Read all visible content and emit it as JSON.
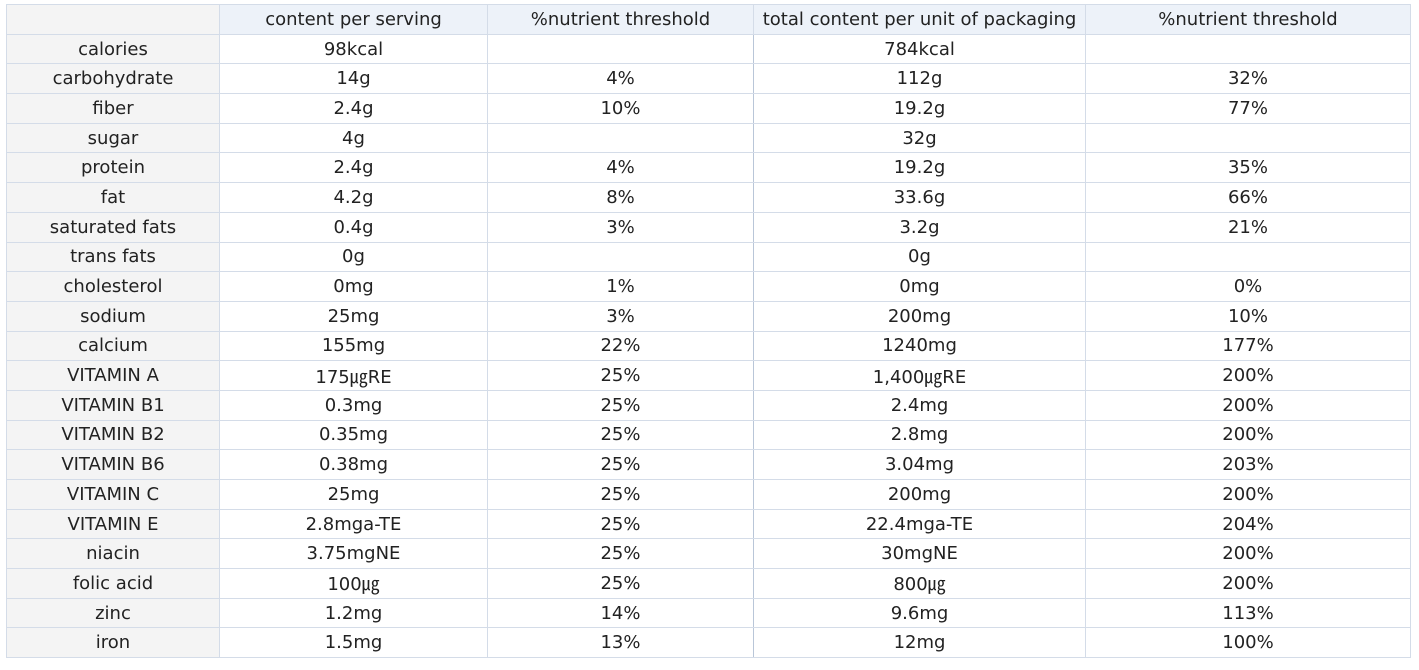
{
  "table": {
    "headers": [
      "",
      "content per serving",
      "%nutrient threshold",
      "total content per unit of packaging",
      "%nutrient threshold"
    ],
    "rows": [
      [
        "calories",
        "98kcal",
        "",
        "784kcal",
        ""
      ],
      [
        "carbohydrate",
        "14g",
        "4%",
        "112g",
        "32%"
      ],
      [
        "fiber",
        "2.4g",
        "10%",
        "19.2g",
        "77%"
      ],
      [
        "sugar",
        "4g",
        "",
        "32g",
        ""
      ],
      [
        "protein",
        "2.4g",
        "4%",
        "19.2g",
        "35%"
      ],
      [
        "fat",
        "4.2g",
        "8%",
        "33.6g",
        "66%"
      ],
      [
        "saturated fats",
        "0.4g",
        "3%",
        "3.2g",
        "21%"
      ],
      [
        "trans fats",
        "0g",
        "",
        "0g",
        ""
      ],
      [
        "cholesterol",
        "0mg",
        "1%",
        "0mg",
        "0%"
      ],
      [
        "sodium",
        "25mg",
        "3%",
        "200mg",
        "10%"
      ],
      [
        "calcium",
        "155mg",
        "22%",
        "1240mg",
        "177%"
      ],
      [
        "VITAMIN A",
        "175㎍RE",
        "25%",
        "1,400㎍RE",
        "200%"
      ],
      [
        "VITAMIN B1",
        "0.3mg",
        "25%",
        "2.4mg",
        "200%"
      ],
      [
        "VITAMIN B2",
        "0.35mg",
        "25%",
        "2.8mg",
        "200%"
      ],
      [
        "VITAMIN B6",
        "0.38mg",
        "25%",
        "3.04mg",
        "203%"
      ],
      [
        "VITAMIN C",
        "25mg",
        "25%",
        "200mg",
        "200%"
      ],
      [
        "VITAMIN E",
        "2.8mga-TE",
        "25%",
        "22.4mga-TE",
        "204%"
      ],
      [
        "niacin",
        "3.75mgNE",
        "25%",
        "30mgNE",
        "200%"
      ],
      [
        "folic acid",
        "100㎍",
        "25%",
        "800㎍",
        "200%"
      ],
      [
        "zinc",
        "1.2mg",
        "14%",
        "9.6mg",
        "113%"
      ],
      [
        "iron",
        "1.5mg",
        "13%",
        "12mg",
        "100%"
      ]
    ]
  }
}
